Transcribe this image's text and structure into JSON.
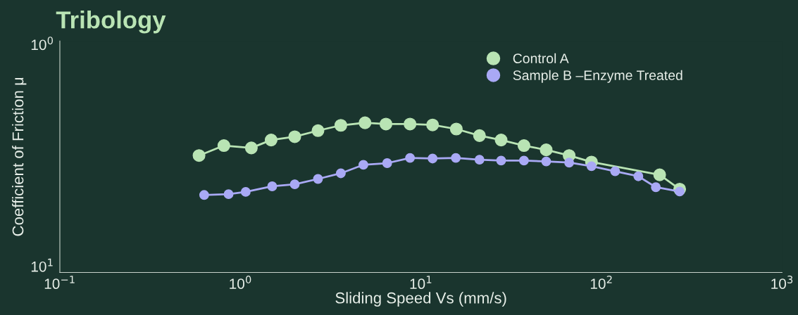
{
  "chart_data": {
    "type": "line",
    "title": "Tribology",
    "xlabel": "Sliding Speed Vs (mm/s)",
    "ylabel": "Coefficient of Friction μ",
    "log": "xy",
    "marker": "circle",
    "line_style": "solid",
    "grid": false,
    "legend": "top right",
    "xlim": [
      0.1,
      1000
    ],
    "xticks": [
      {
        "value": 0.1,
        "label": "10$^{−1}$"
      },
      {
        "value": 1,
        "label": "10$^{0}$"
      },
      {
        "value": 10,
        "label": "10$^{1}$"
      },
      {
        "value": 100,
        "label": "10$^{2}$"
      },
      {
        "value": 1000,
        "label": "10$^{3}$"
      }
    ],
    "ylim": [
      10.64,
      0.962
    ],
    "yticks": [
      {
        "value": 10,
        "label": "10$^{1}$"
      },
      {
        "value": 1,
        "label": "10$^{0}$"
      }
    ],
    "series": [
      {
        "name": "Control A",
        "color": "#b9e4b4",
        "x": [
          0.59,
          0.81,
          1.15,
          1.48,
          2.0,
          2.69,
          3.6,
          4.9,
          6.4,
          8.7,
          11.6,
          15.7,
          21.1,
          27.8,
          37.2,
          49.4,
          66.2,
          88,
          210,
          271
        ],
        "values": [
          3.16,
          2.85,
          2.92,
          2.69,
          2.6,
          2.44,
          2.31,
          2.25,
          2.28,
          2.28,
          2.3,
          2.4,
          2.57,
          2.69,
          2.85,
          2.98,
          3.16,
          3.38,
          3.86,
          4.48
        ]
      },
      {
        "name": "Sample B –Enzyme Treated",
        "color": "#a9a9f5",
        "x": [
          0.63,
          0.86,
          1.07,
          1.5,
          2.0,
          2.69,
          3.6,
          4.8,
          6.5,
          8.7,
          11.6,
          15.6,
          21.1,
          27.8,
          37.2,
          49.4,
          66.2,
          88,
          119,
          160,
          200,
          271
        ],
        "values": [
          4.76,
          4.72,
          4.61,
          4.35,
          4.26,
          4.03,
          3.8,
          3.48,
          3.42,
          3.24,
          3.26,
          3.24,
          3.3,
          3.33,
          3.33,
          3.36,
          3.4,
          3.53,
          3.72,
          3.92,
          4.39,
          4.59
        ]
      }
    ]
  }
}
